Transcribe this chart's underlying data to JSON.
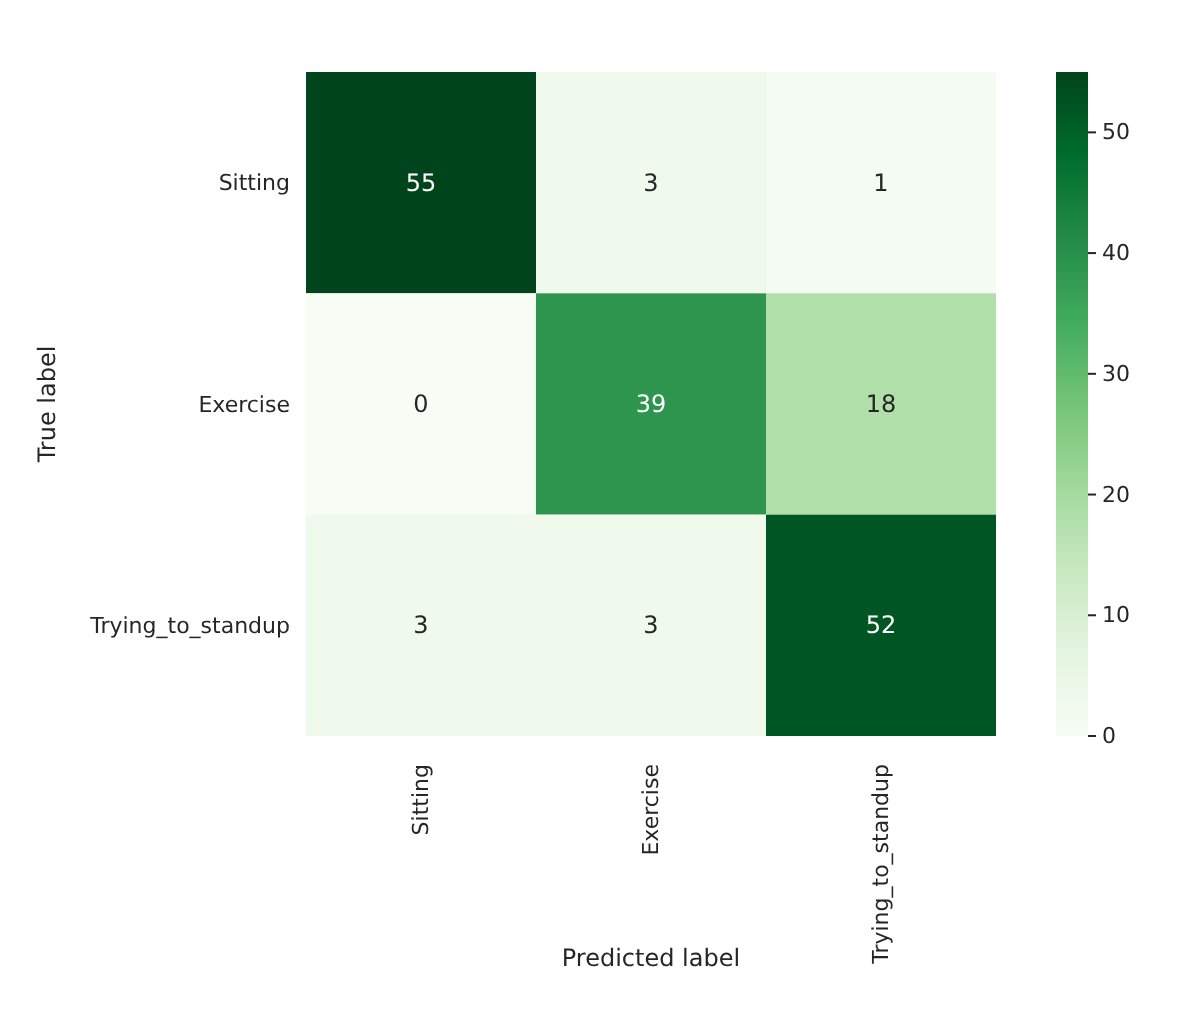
{
  "chart_data": {
    "type": "heatmap",
    "xlabel": "Predicted label",
    "ylabel": "True label",
    "categories": [
      "Sitting",
      "Exercise",
      "Trying_to_standup"
    ],
    "y_categories": [
      "Sitting",
      "Exercise",
      "Trying_to_standup"
    ],
    "cells": [
      [
        55,
        3,
        1
      ],
      [
        0,
        39,
        18
      ],
      [
        3,
        3,
        52
      ]
    ],
    "clim": [
      0,
      55
    ],
    "cticks": [
      0,
      10,
      20,
      30,
      40,
      50
    ],
    "data_labels": true
  }
}
